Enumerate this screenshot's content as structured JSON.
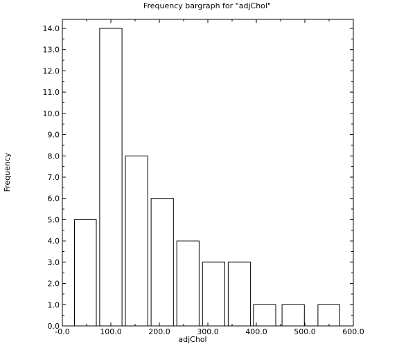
{
  "chart_data": {
    "type": "bar",
    "title": "Frequency bargraph for \"adjChol\"",
    "xlabel": "adjChol",
    "ylabel": "Frequency",
    "xlim": [
      -0.0,
      600.0
    ],
    "ylim": [
      0.0,
      14.0
    ],
    "x_ticks": [
      "-0.0",
      "100.0",
      "200.0",
      "300.0",
      "400.0",
      "500.0",
      "600.0"
    ],
    "y_ticks": [
      "0.0",
      "1.0",
      "2.0",
      "3.0",
      "4.0",
      "5.0",
      "6.0",
      "7.0",
      "8.0",
      "9.0",
      "10.0",
      "11.0",
      "12.0",
      "13.0",
      "14.0"
    ],
    "bars": [
      {
        "x0": 25,
        "x1": 70,
        "value": 5
      },
      {
        "x0": 77,
        "x1": 123,
        "value": 14
      },
      {
        "x0": 130,
        "x1": 176,
        "value": 8
      },
      {
        "x0": 183,
        "x1": 229,
        "value": 6
      },
      {
        "x0": 236,
        "x1": 282,
        "value": 4
      },
      {
        "x0": 289,
        "x1": 335,
        "value": 3
      },
      {
        "x0": 342,
        "x1": 388,
        "value": 3
      },
      {
        "x0": 394,
        "x1": 440,
        "value": 1
      },
      {
        "x0": 453,
        "x1": 499,
        "value": 1
      },
      {
        "x0": 527,
        "x1": 572,
        "value": 1
      }
    ],
    "grid": false,
    "legend": "none",
    "bar_fill": "#ffffff",
    "bar_stroke": "#000000"
  }
}
